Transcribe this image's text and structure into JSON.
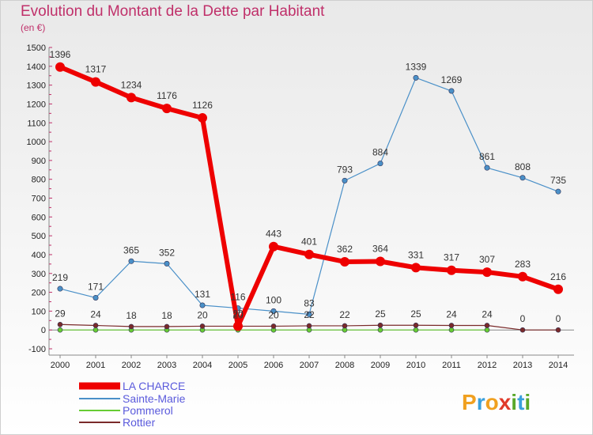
{
  "chart_data": {
    "type": "line",
    "title": "Evolution du Montant de la Dette par Habitant",
    "unit": "(en €)",
    "x": [
      "2000",
      "2001",
      "2002",
      "2003",
      "2004",
      "2005",
      "2006",
      "2007",
      "2008",
      "2009",
      "2010",
      "2011",
      "2012",
      "2013",
      "2014"
    ],
    "ylim": [
      -100,
      1500
    ],
    "yticks": [
      -100,
      0,
      100,
      200,
      300,
      400,
      500,
      600,
      700,
      800,
      900,
      1000,
      1100,
      1200,
      1300,
      1400,
      1500
    ],
    "grid": false,
    "legend_placement": "bottom-left",
    "series": [
      {
        "name": "LA CHARCE",
        "color": "#ee0000",
        "values": [
          1396,
          1317,
          1234,
          1176,
          1126,
          20,
          443,
          401,
          362,
          364,
          331,
          317,
          307,
          283,
          216
        ]
      },
      {
        "name": "Sainte-Marie",
        "color": "#4a90c8",
        "values": [
          219,
          171,
          365,
          352,
          131,
          116,
          100,
          83,
          793,
          884,
          1339,
          1269,
          861,
          808,
          735
        ]
      },
      {
        "name": "Pommerol",
        "color": "#66cc33",
        "values": [
          0,
          0,
          0,
          0,
          0,
          0,
          0,
          0,
          0,
          0,
          0,
          0,
          0,
          null,
          null
        ]
      },
      {
        "name": "Rottier",
        "color": "#7a2a2a",
        "values": [
          29,
          24,
          18,
          18,
          20,
          20,
          20,
          22,
          22,
          25,
          25,
          24,
          24,
          0,
          0
        ]
      }
    ],
    "data_labels": {
      "LA CHARCE": [
        "1396",
        "1317",
        "1234",
        "1176",
        "1126",
        "20",
        "443",
        "401",
        "362",
        "364",
        "331",
        "317",
        "307",
        "283",
        "216"
      ],
      "Sainte-Marie": [
        "219",
        "171",
        "365",
        "352",
        "131",
        "116",
        "100",
        "83",
        "793",
        "884",
        "1339",
        "1269",
        "861",
        "808",
        "735"
      ],
      "Rottier": [
        "29",
        "24",
        "18",
        "18",
        "20",
        "20",
        "20",
        "22",
        "22",
        "25",
        "25",
        "24",
        "24",
        "0",
        "0"
      ]
    }
  },
  "watermark": "Proxiti"
}
